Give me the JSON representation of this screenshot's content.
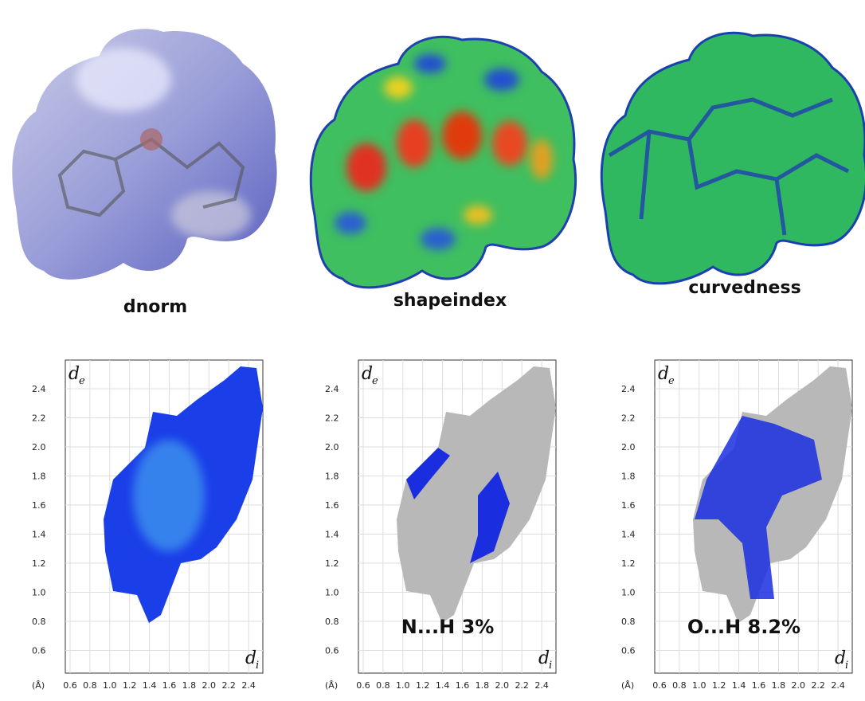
{
  "surfaces": [
    {
      "label": "dnorm"
    },
    {
      "label": "shapeindex"
    },
    {
      "label": "curvedness"
    }
  ],
  "plots": [
    {
      "y_axis": {
        "symbol": "d",
        "subscript": "e"
      },
      "x_axis": {
        "symbol": "d",
        "subscript": "i"
      },
      "unit": "(Å)",
      "yticks": [
        "2.4",
        "2.2",
        "2.0",
        "1.8",
        "1.6",
        "1.4",
        "1.2",
        "1.0",
        "0.8",
        "0.6"
      ],
      "xticks": [
        "0.6",
        "0.8",
        "1.0",
        "1.2",
        "1.4",
        "1.6",
        "1.8",
        "2.0",
        "2.2",
        "2.4"
      ]
    },
    {
      "y_axis": {
        "symbol": "d",
        "subscript": "e"
      },
      "x_axis": {
        "symbol": "d",
        "subscript": "i"
      },
      "unit": "(Å)",
      "yticks": [
        "2.4",
        "2.2",
        "2.0",
        "1.8",
        "1.6",
        "1.4",
        "1.2",
        "1.0",
        "0.8",
        "0.6"
      ],
      "xticks": [
        "0.6",
        "0.8",
        "1.0",
        "1.2",
        "1.4",
        "1.6",
        "1.8",
        "2.0",
        "2.2",
        "2.4"
      ],
      "annotation": "N...H 3%"
    },
    {
      "y_axis": {
        "symbol": "d",
        "subscript": "e"
      },
      "x_axis": {
        "symbol": "d",
        "subscript": "i"
      },
      "unit": "(Å)",
      "yticks": [
        "2.4",
        "2.2",
        "2.0",
        "1.8",
        "1.6",
        "1.4",
        "1.2",
        "1.0",
        "0.8",
        "0.6"
      ],
      "xticks": [
        "0.6",
        "0.8",
        "1.0",
        "1.2",
        "1.4",
        "1.6",
        "1.8",
        "2.0",
        "2.2",
        "2.4"
      ],
      "annotation": "O...H 8.2%"
    }
  ]
}
